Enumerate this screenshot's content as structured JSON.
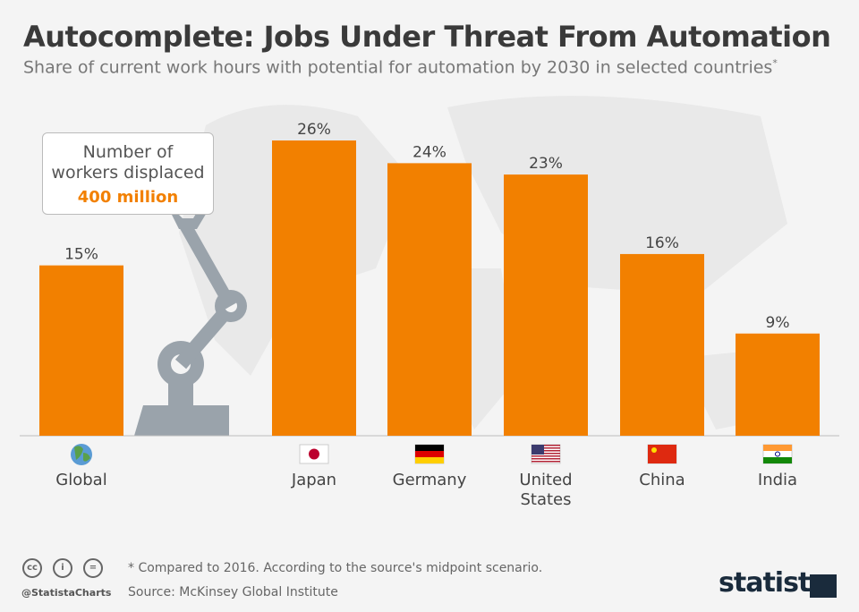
{
  "title": "Autocomplete: Jobs Under Threat From Automation",
  "subtitle": "Share of current work hours with potential for automation by 2030 in selected countries",
  "subtitle_mark": "*",
  "callout": {
    "line1": "Number of",
    "line2": "workers displaced",
    "value": "400 million"
  },
  "footer": {
    "note": "* Compared to 2016. According to the source's midpoint scenario.",
    "source": "Source: McKinsey Global Institute",
    "handle": "@StatistaCharts",
    "brand": "statista",
    "cc_icons": [
      "cc",
      "i",
      "="
    ]
  },
  "colors": {
    "bar": "#f28000",
    "robot": "#9aa3ab",
    "text": "#3a3a3a"
  },
  "chart_data": {
    "type": "bar",
    "categories": [
      "Global",
      "Japan",
      "Germany",
      "United States",
      "China",
      "India"
    ],
    "values": [
      15,
      26,
      24,
      23,
      16,
      9
    ],
    "labels": [
      "15%",
      "26%",
      "24%",
      "23%",
      "16%",
      "9%"
    ],
    "icons": [
      "globe-icon",
      "japan-flag-icon",
      "germany-flag-icon",
      "us-flag-icon",
      "china-flag-icon",
      "india-flag-icon"
    ],
    "unit": "%",
    "ylim": [
      0,
      26
    ],
    "grid": false
  }
}
